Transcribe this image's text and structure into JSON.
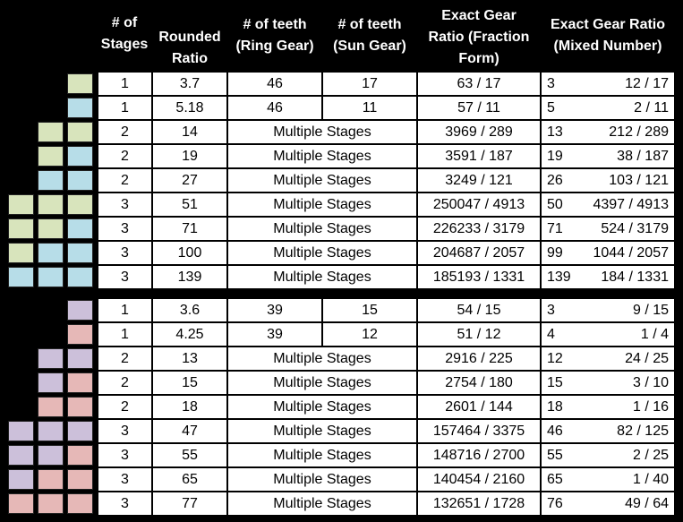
{
  "colors": {
    "green": "#d8e4bc",
    "blue": "#b7dde8",
    "purple": "#ccc0da",
    "pink": "#e6b8b7"
  },
  "headers": [
    "# of\nStages",
    "Rounded\nRatio",
    "# of teeth\n(Ring Gear)",
    "# of teeth\n(Sun Gear)",
    "Exact Gear\nRatio (Fraction\nForm)",
    "Exact Gear Ratio\n(Mixed Number)"
  ],
  "groups": [
    {
      "rows": [
        {
          "swatches": [
            "green"
          ],
          "stages": "1",
          "rounded": "3.7",
          "ring": "46",
          "sun": "17",
          "fraction": "63 / 17",
          "mixed_whole": "3",
          "mixed_frac": "12 / 17"
        },
        {
          "swatches": [
            "blue"
          ],
          "stages": "1",
          "rounded": "5.18",
          "ring": "46",
          "sun": "11",
          "fraction": "57 / 11",
          "mixed_whole": "5",
          "mixed_frac": "2 / 11"
        },
        {
          "swatches": [
            "green",
            "green"
          ],
          "stages": "2",
          "rounded": "14",
          "multiple": "Multiple Stages",
          "fraction": "3969 / 289",
          "mixed_whole": "13",
          "mixed_frac": "212 / 289"
        },
        {
          "swatches": [
            "green",
            "blue"
          ],
          "stages": "2",
          "rounded": "19",
          "multiple": "Multiple Stages",
          "fraction": "3591 / 187",
          "mixed_whole": "19",
          "mixed_frac": "38 / 187"
        },
        {
          "swatches": [
            "blue",
            "blue"
          ],
          "stages": "2",
          "rounded": "27",
          "multiple": "Multiple Stages",
          "fraction": "3249 / 121",
          "mixed_whole": "26",
          "mixed_frac": "103 / 121"
        },
        {
          "swatches": [
            "green",
            "green",
            "green"
          ],
          "stages": "3",
          "rounded": "51",
          "multiple": "Multiple Stages",
          "fraction": "250047 / 4913",
          "mixed_whole": "50",
          "mixed_frac": "4397 / 4913"
        },
        {
          "swatches": [
            "green",
            "green",
            "blue"
          ],
          "stages": "3",
          "rounded": "71",
          "multiple": "Multiple Stages",
          "fraction": "226233 / 3179",
          "mixed_whole": "71",
          "mixed_frac": "524 / 3179"
        },
        {
          "swatches": [
            "green",
            "blue",
            "blue"
          ],
          "stages": "3",
          "rounded": "100",
          "multiple": "Multiple Stages",
          "fraction": "204687 / 2057",
          "mixed_whole": "99",
          "mixed_frac": "1044 / 2057"
        },
        {
          "swatches": [
            "blue",
            "blue",
            "blue"
          ],
          "stages": "3",
          "rounded": "139",
          "multiple": "Multiple Stages",
          "fraction": "185193 / 1331",
          "mixed_whole": "139",
          "mixed_frac": "184 / 1331"
        }
      ]
    },
    {
      "rows": [
        {
          "swatches": [
            "purple"
          ],
          "stages": "1",
          "rounded": "3.6",
          "ring": "39",
          "sun": "15",
          "fraction": "54 / 15",
          "mixed_whole": "3",
          "mixed_frac": "9 / 15"
        },
        {
          "swatches": [
            "pink"
          ],
          "stages": "1",
          "rounded": "4.25",
          "ring": "39",
          "sun": "12",
          "fraction": "51 / 12",
          "mixed_whole": "4",
          "mixed_frac": "1 / 4"
        },
        {
          "swatches": [
            "purple",
            "purple"
          ],
          "stages": "2",
          "rounded": "13",
          "multiple": "Multiple Stages",
          "fraction": "2916 / 225",
          "mixed_whole": "12",
          "mixed_frac": "24 / 25"
        },
        {
          "swatches": [
            "purple",
            "pink"
          ],
          "stages": "2",
          "rounded": "15",
          "multiple": "Multiple Stages",
          "fraction": "2754 / 180",
          "mixed_whole": "15",
          "mixed_frac": "3 / 10"
        },
        {
          "swatches": [
            "pink",
            "pink"
          ],
          "stages": "2",
          "rounded": "18",
          "multiple": "Multiple Stages",
          "fraction": "2601 / 144",
          "mixed_whole": "18",
          "mixed_frac": "1 / 16"
        },
        {
          "swatches": [
            "purple",
            "purple",
            "purple"
          ],
          "stages": "3",
          "rounded": "47",
          "multiple": "Multiple Stages",
          "fraction": "157464 / 3375",
          "mixed_whole": "46",
          "mixed_frac": "82 / 125"
        },
        {
          "swatches": [
            "purple",
            "purple",
            "pink"
          ],
          "stages": "3",
          "rounded": "55",
          "multiple": "Multiple Stages",
          "fraction": "148716 / 2700",
          "mixed_whole": "55",
          "mixed_frac": "2 / 25"
        },
        {
          "swatches": [
            "purple",
            "pink",
            "pink"
          ],
          "stages": "3",
          "rounded": "65",
          "multiple": "Multiple Stages",
          "fraction": "140454 / 2160",
          "mixed_whole": "65",
          "mixed_frac": "1 / 40"
        },
        {
          "swatches": [
            "pink",
            "pink",
            "pink"
          ],
          "stages": "3",
          "rounded": "77",
          "multiple": "Multiple Stages",
          "fraction": "132651 / 1728",
          "mixed_whole": "76",
          "mixed_frac": "49 / 64"
        }
      ]
    }
  ]
}
